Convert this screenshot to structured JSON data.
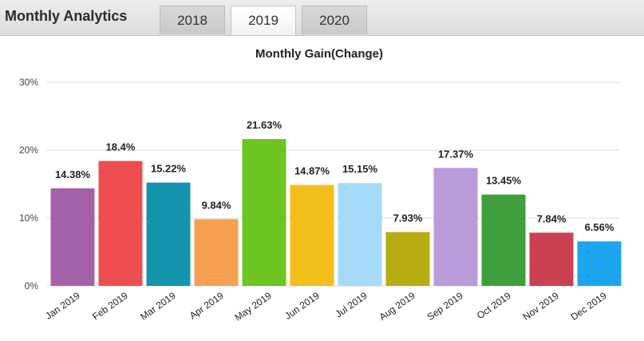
{
  "header": {
    "title": "Monthly Analytics",
    "tabs": [
      {
        "label": "2018",
        "active": false
      },
      {
        "label": "2019",
        "active": true
      },
      {
        "label": "2020",
        "active": false
      }
    ]
  },
  "chart_data": {
    "type": "bar",
    "title": "Monthly Gain(Change)",
    "xlabel": "",
    "ylabel": "",
    "ylim": [
      0,
      30
    ],
    "yticks": [
      0,
      10,
      20,
      30
    ],
    "ytick_labels": [
      "0%",
      "10%",
      "20%",
      "30%"
    ],
    "grid": true,
    "legend": "none",
    "categories": [
      "Jan 2019",
      "Feb 2019",
      "Mar 2019",
      "Apr 2019",
      "May 2019",
      "Jun 2019",
      "Jul 2019",
      "Aug 2019",
      "Sep 2019",
      "Oct 2019",
      "Nov 2019",
      "Dec 2019"
    ],
    "values": [
      14.38,
      18.4,
      15.22,
      9.84,
      21.63,
      14.87,
      15.15,
      7.93,
      17.37,
      13.45,
      7.84,
      6.56
    ],
    "data_labels": [
      "14.38%",
      "18.4%",
      "15.22%",
      "9.84%",
      "21.63%",
      "14.87%",
      "15.15%",
      "7.93%",
      "17.37%",
      "13.45%",
      "7.84%",
      "6.56%"
    ],
    "colors": [
      "#a461a8",
      "#ee4e50",
      "#1495ad",
      "#f6a052",
      "#6dc51f",
      "#f2bf1d",
      "#a6daf9",
      "#b8ac12",
      "#b89bd8",
      "#3f9f3a",
      "#cb4050",
      "#1ca5ee"
    ]
  }
}
